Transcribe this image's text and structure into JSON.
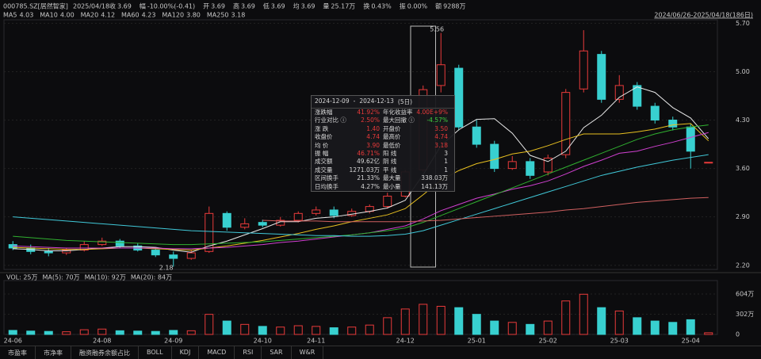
{
  "header": {
    "code": "000785.SZ[居然智家]",
    "date": "2025/04/18",
    "items": [
      {
        "label": "收",
        "value": "3.69",
        "color": "#3fd03f"
      },
      {
        "label": "幅",
        "value": "-10.00%(-0.41)",
        "color": "#3fd03f"
      },
      {
        "label": "开",
        "value": "3.69",
        "color": "#3fd03f"
      },
      {
        "label": "高",
        "value": "3.69",
        "color": "#3fd03f"
      },
      {
        "label": "低",
        "value": "3.69",
        "color": "#3fd03f"
      },
      {
        "label": "均",
        "value": "3.69",
        "color": "#3fd03f"
      },
      {
        "label": "量",
        "value": "25.17万",
        "color": "#d8d8d8"
      },
      {
        "label": "换",
        "value": "0.43%",
        "color": "#d8d8d8"
      },
      {
        "label": "振",
        "value": "0.00%",
        "color": "#d8d8d8"
      },
      {
        "label": "额",
        "value": "9288万",
        "color": "#d8d8d8"
      }
    ],
    "range": "2024/06/26-2025/04/18(186日)"
  },
  "chart_data": {
    "type": "candlestick",
    "categories": [
      "24-06",
      null,
      null,
      null,
      null,
      "24-08",
      null,
      null,
      null,
      "24-09",
      null,
      null,
      null,
      null,
      "24-10",
      null,
      null,
      "24-11",
      null,
      null,
      null,
      null,
      "24-12",
      null,
      null,
      null,
      "25-01",
      null,
      null,
      null,
      "25-02",
      null,
      null,
      null,
      "25-03",
      null,
      null,
      null,
      "25-04",
      null
    ],
    "open": [
      2.5,
      2.45,
      2.4,
      2.38,
      2.42,
      2.5,
      2.55,
      2.48,
      2.42,
      2.35,
      2.3,
      2.4,
      2.95,
      2.75,
      2.82,
      2.78,
      2.85,
      2.95,
      3.0,
      2.92,
      2.98,
      3.05,
      3.2,
      3.58,
      4.8,
      5.05,
      4.2,
      3.95,
      3.6,
      3.7,
      3.55,
      3.8,
      4.75,
      5.25,
      4.6,
      4.8,
      4.5,
      4.3,
      4.2,
      3.69
    ],
    "high": [
      2.55,
      2.5,
      2.45,
      2.45,
      2.55,
      2.6,
      2.58,
      2.52,
      2.45,
      2.4,
      2.42,
      3.05,
      2.98,
      2.88,
      2.86,
      2.9,
      2.98,
      3.05,
      3.05,
      3.02,
      3.08,
      3.25,
      3.58,
      4.8,
      5.56,
      5.1,
      4.3,
      4.0,
      3.78,
      3.75,
      3.8,
      4.75,
      5.6,
      5.3,
      4.95,
      4.85,
      4.55,
      4.35,
      4.25,
      3.69
    ],
    "low": [
      2.42,
      2.36,
      2.33,
      2.35,
      2.4,
      2.48,
      2.45,
      2.4,
      2.32,
      2.18,
      2.28,
      2.38,
      2.7,
      2.72,
      2.75,
      2.76,
      2.82,
      2.92,
      2.88,
      2.9,
      2.95,
      3.02,
      3.18,
      3.55,
      4.7,
      4.15,
      3.9,
      3.55,
      3.58,
      3.45,
      3.5,
      3.75,
      4.7,
      4.55,
      4.55,
      4.45,
      4.25,
      4.15,
      3.6,
      3.69
    ],
    "close": [
      2.45,
      2.4,
      2.38,
      2.42,
      2.5,
      2.55,
      2.48,
      2.42,
      2.35,
      2.3,
      2.38,
      2.95,
      2.75,
      2.8,
      2.78,
      2.85,
      2.95,
      3.0,
      2.92,
      2.98,
      3.05,
      3.2,
      3.55,
      4.74,
      5.1,
      4.2,
      3.95,
      3.6,
      3.7,
      3.5,
      3.75,
      4.7,
      5.3,
      4.6,
      4.8,
      4.5,
      4.3,
      4.2,
      3.85,
      3.69
    ],
    "up_color": "#e83a3a",
    "down_color": "#38d0d0",
    "ma": [
      {
        "name": "MA5",
        "label": "4.03",
        "color": "#e8e8e8",
        "values": [
          2.44,
          2.43,
          2.41,
          2.41,
          2.43,
          2.45,
          2.47,
          2.47,
          2.46,
          2.42,
          2.39,
          2.48,
          2.55,
          2.64,
          2.73,
          2.83,
          2.83,
          2.88,
          2.9,
          2.94,
          2.98,
          3.03,
          3.14,
          3.51,
          3.93,
          4.16,
          4.31,
          4.32,
          4.11,
          3.79,
          3.7,
          3.85,
          4.19,
          4.37,
          4.63,
          4.78,
          4.7,
          4.48,
          4.33,
          4.03
        ]
      },
      {
        "name": "MA10",
        "label": "4.00",
        "color": "#e8c020",
        "values": [
          2.46,
          2.45,
          2.44,
          2.43,
          2.43,
          2.44,
          2.45,
          2.45,
          2.44,
          2.43,
          2.42,
          2.45,
          2.48,
          2.52,
          2.56,
          2.61,
          2.66,
          2.72,
          2.77,
          2.83,
          2.88,
          2.93,
          3.02,
          3.22,
          3.43,
          3.57,
          3.67,
          3.73,
          3.81,
          3.85,
          3.93,
          4.02,
          4.1,
          4.1,
          4.1,
          4.13,
          4.17,
          4.23,
          4.25,
          4.0
        ]
      },
      {
        "name": "MA20",
        "label": "4.12",
        "color": "#d040d0",
        "values": [
          2.48,
          2.47,
          2.46,
          2.45,
          2.45,
          2.45,
          2.45,
          2.45,
          2.45,
          2.44,
          2.44,
          2.45,
          2.46,
          2.48,
          2.5,
          2.53,
          2.55,
          2.58,
          2.61,
          2.64,
          2.67,
          2.72,
          2.77,
          2.87,
          2.99,
          3.08,
          3.17,
          3.23,
          3.3,
          3.35,
          3.42,
          3.52,
          3.63,
          3.72,
          3.82,
          3.85,
          3.92,
          3.98,
          4.05,
          4.12
        ]
      },
      {
        "name": "MA60",
        "label": "4.23",
        "color": "#30b030",
        "values": [
          2.62,
          2.6,
          2.58,
          2.56,
          2.55,
          2.54,
          2.53,
          2.52,
          2.51,
          2.5,
          2.5,
          2.51,
          2.52,
          2.53,
          2.54,
          2.56,
          2.58,
          2.6,
          2.62,
          2.64,
          2.67,
          2.7,
          2.74,
          2.82,
          2.92,
          3.02,
          3.12,
          3.22,
          3.32,
          3.42,
          3.52,
          3.62,
          3.72,
          3.82,
          3.92,
          4.02,
          4.1,
          4.16,
          4.2,
          4.23
        ]
      },
      {
        "name": "MA120",
        "label": "3.80",
        "color": "#40c8d8",
        "values": [
          2.9,
          2.88,
          2.86,
          2.84,
          2.82,
          2.8,
          2.78,
          2.76,
          2.74,
          2.72,
          2.7,
          2.69,
          2.68,
          2.67,
          2.66,
          2.65,
          2.64,
          2.63,
          2.63,
          2.62,
          2.62,
          2.63,
          2.65,
          2.7,
          2.78,
          2.86,
          2.94,
          3.02,
          3.1,
          3.18,
          3.26,
          3.34,
          3.42,
          3.5,
          3.56,
          3.62,
          3.67,
          3.72,
          3.76,
          3.8
        ]
      },
      {
        "name": "MA250",
        "label": "3.18",
        "color": "#d06060",
        "values": [
          null,
          null,
          null,
          null,
          null,
          null,
          null,
          null,
          null,
          null,
          null,
          null,
          null,
          null,
          2.85,
          2.84,
          2.84,
          2.84,
          2.83,
          2.83,
          2.83,
          2.83,
          2.83,
          2.84,
          2.85,
          2.87,
          2.89,
          2.91,
          2.93,
          2.95,
          2.97,
          3.0,
          3.02,
          3.05,
          3.08,
          3.11,
          3.13,
          3.15,
          3.17,
          3.18
        ]
      }
    ],
    "ylim": [
      2.14,
      5.75
    ],
    "yticks": [
      {
        "value": 2.2,
        "label": "2.20"
      },
      {
        "value": 2.9,
        "label": "2.90"
      },
      {
        "value": 3.6,
        "label": "3.60"
      },
      {
        "value": 4.3,
        "label": "4.30"
      },
      {
        "value": 5.0,
        "label": "5.00"
      },
      {
        "value": 5.7,
        "label": "5.70"
      }
    ],
    "annotations": [
      "5.56",
      "2.18"
    ],
    "volume": [
      60,
      50,
      45,
      40,
      70,
      80,
      55,
      50,
      45,
      60,
      55,
      300,
      200,
      150,
      120,
      110,
      130,
      120,
      100,
      110,
      140,
      250,
      380,
      450,
      420,
      400,
      300,
      200,
      180,
      150,
      200,
      500,
      600,
      400,
      350,
      250,
      200,
      180,
      220,
      25
    ],
    "volume_legend": [
      "VOL: 25万",
      "MA(5): 70万",
      "MA(10): 92万",
      "MA(20): 84万"
    ],
    "vlim": [
      0,
      710
    ],
    "vticks": [
      0,
      {
        "value": 302,
        "label": "302万"
      },
      {
        "value": 604,
        "label": "604万"
      }
    ]
  },
  "tooltip": {
    "start": "2024-12-09",
    "sep": "-",
    "end": "2024-12-13",
    "days": "(5日)",
    "rows": [
      [
        "涨跌幅",
        "41.92%",
        "年化收益率",
        "4.00E+9%"
      ],
      [
        "行业对比 ⓘ",
        "2.50%",
        "最大回撤 ⓘ",
        "-4.57%"
      ],
      [
        "涨 跌",
        "1.40",
        "开盘价",
        "3.50"
      ],
      [
        "收盘价",
        "4.74",
        "最高价",
        "4.74"
      ],
      [
        "均 价",
        "3.90",
        "最低价",
        "3.18"
      ],
      [
        "振 幅",
        "46.71%",
        "阳 线",
        "3"
      ],
      [
        "成交额",
        "49.62亿",
        "阴 线",
        "1"
      ],
      [
        "成交量",
        "1271.03万",
        "平 线",
        "1"
      ],
      [
        "区间换手",
        "21.33%",
        "最大量",
        "338.03万"
      ],
      [
        "日均换手",
        "4.27%",
        "最小量",
        "141.13万"
      ]
    ],
    "colors": [
      [
        "#e83a3a",
        "#e83a3a"
      ],
      [
        "#e83a3a",
        "#3fd03f"
      ],
      [
        "#e83a3a",
        "#e83a3a"
      ],
      [
        "#e83a3a",
        "#e83a3a"
      ],
      [
        "#e83a3a",
        "#e83a3a"
      ],
      [
        "#e83a3a",
        "#d8d8d8"
      ],
      [
        "#d8d8d8",
        "#d8d8d8"
      ],
      [
        "#d8d8d8",
        "#d8d8d8"
      ],
      [
        "#d8d8d8",
        "#d8d8d8"
      ],
      [
        "#d8d8d8",
        "#d8d8d8"
      ]
    ]
  },
  "tabs": [
    "市盈率",
    "市净率",
    "融资融券余额占比",
    "BOLL",
    "KDJ",
    "MACD",
    "RSI",
    "SAR",
    "W&R"
  ]
}
